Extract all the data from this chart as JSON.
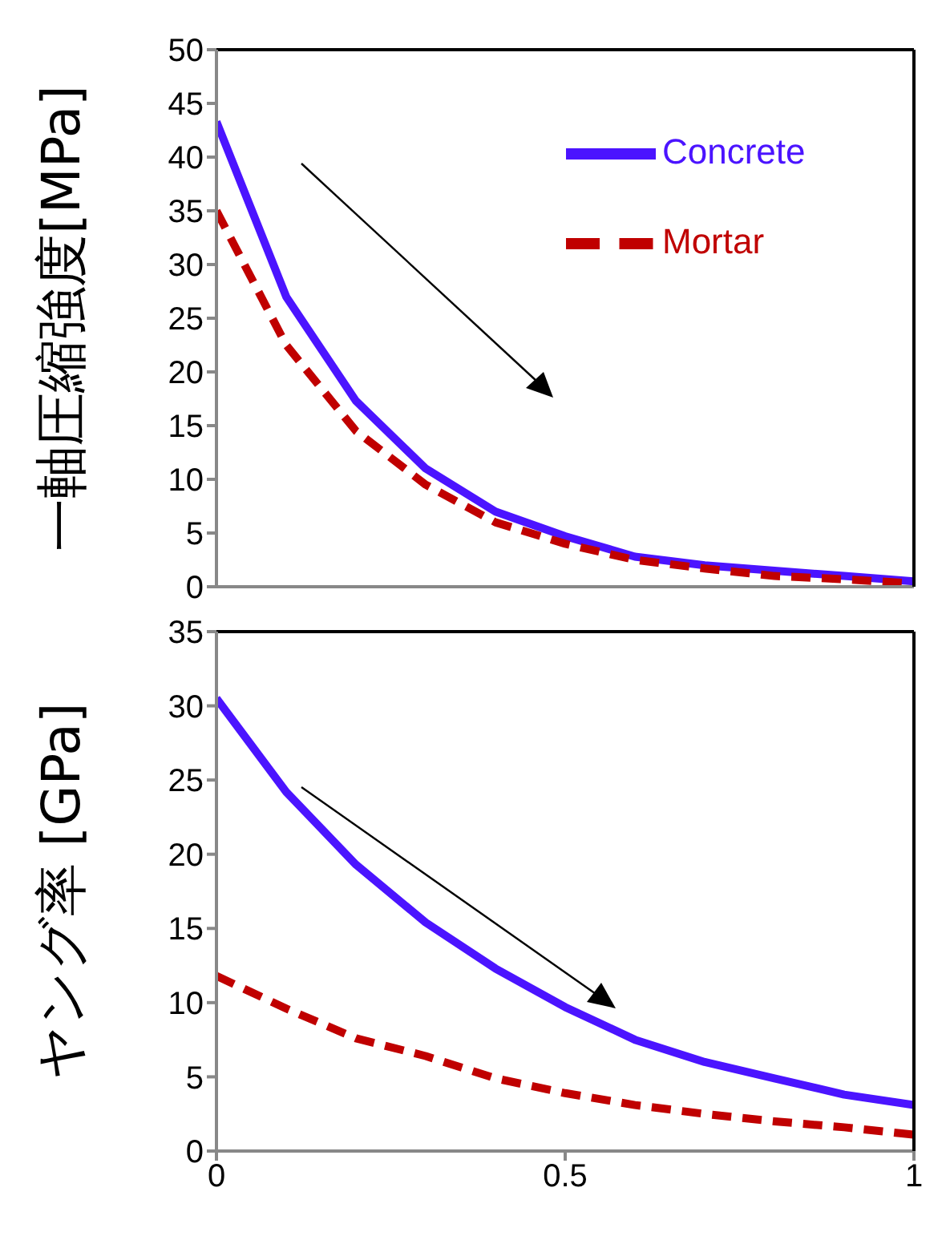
{
  "chart_data": [
    {
      "type": "line",
      "ylabel": "一軸圧縮強度[MPa]",
      "x": [
        0,
        0.1,
        0.2,
        0.3,
        0.4,
        0.5,
        0.6,
        0.7,
        0.8,
        0.9,
        1
      ],
      "xlim": [
        0,
        1
      ],
      "ylim": [
        0,
        50
      ],
      "yticks": [
        0,
        5,
        10,
        15,
        20,
        25,
        30,
        35,
        40,
        45,
        50
      ],
      "tick_labels": "y",
      "grid": false,
      "legend": "top right",
      "marker": "none",
      "series": [
        {
          "name": "Concrete",
          "color": "#4b14ff",
          "line_style": "solid",
          "values": [
            43.3,
            27,
            17.3,
            11,
            7,
            4.7,
            2.8,
            2,
            1.5,
            1,
            0.5
          ]
        },
        {
          "name": "Mortar",
          "color": "#c00000",
          "line_style": "dashed",
          "values": [
            35,
            22.5,
            14.5,
            9.5,
            6,
            4,
            2.5,
            1.7,
            1,
            0.7,
            0.3
          ]
        }
      ]
    },
    {
      "type": "line",
      "ylabel": "ヤング率 [GPa]",
      "x": [
        0,
        0.1,
        0.2,
        0.3,
        0.4,
        0.5,
        0.6,
        0.7,
        0.8,
        0.9,
        1
      ],
      "xlim": [
        0,
        1
      ],
      "xticks": [
        0,
        0.5,
        1
      ],
      "ylim": [
        0,
        35
      ],
      "yticks": [
        0,
        5,
        10,
        15,
        20,
        25,
        30,
        35
      ],
      "grid": false,
      "legend": false,
      "marker": "none",
      "series": [
        {
          "color": "#4b14ff",
          "line_style": "solid",
          "values": [
            30.5,
            24.2,
            19.3,
            15.4,
            12.3,
            9.7,
            7.5,
            6,
            4.9,
            3.8,
            3.1
          ]
        },
        {
          "color": "#c00000",
          "line_style": "dashed",
          "values": [
            11.8,
            9.6,
            7.6,
            6.4,
            4.9,
            3.9,
            3.1,
            2.5,
            2,
            1.6,
            1.1
          ]
        }
      ]
    }
  ]
}
